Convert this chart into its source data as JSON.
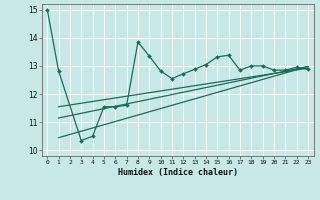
{
  "xlabel": "Humidex (Indice chaleur)",
  "background_color": "#c8e8e8",
  "line_color": "#1a6b5a",
  "grid_color": "#ffffff",
  "xlim": [
    -0.5,
    23.5
  ],
  "ylim": [
    9.8,
    15.2
  ],
  "yticks": [
    10,
    11,
    12,
    13,
    14,
    15
  ],
  "xticks": [
    0,
    1,
    2,
    3,
    4,
    5,
    6,
    7,
    8,
    9,
    10,
    11,
    12,
    13,
    14,
    15,
    16,
    17,
    18,
    19,
    20,
    21,
    22,
    23
  ],
  "main_x": [
    0,
    1,
    3,
    4,
    5,
    6,
    7,
    8,
    9,
    10,
    11,
    12,
    13,
    14,
    15,
    16,
    17,
    18,
    19,
    20,
    21,
    22,
    23
  ],
  "main_y": [
    15.0,
    12.82,
    10.35,
    10.5,
    11.55,
    11.55,
    11.6,
    13.85,
    13.35,
    12.82,
    12.55,
    12.72,
    12.88,
    13.05,
    13.32,
    13.38,
    12.85,
    13.0,
    13.0,
    12.85,
    12.85,
    12.95,
    12.88
  ],
  "trend1_x": [
    1,
    23
  ],
  "trend1_y": [
    11.15,
    12.98
  ],
  "trend2_x": [
    1,
    23
  ],
  "trend2_y": [
    11.55,
    12.92
  ],
  "trend3_x": [
    1,
    23
  ],
  "trend3_y": [
    10.45,
    12.98
  ]
}
